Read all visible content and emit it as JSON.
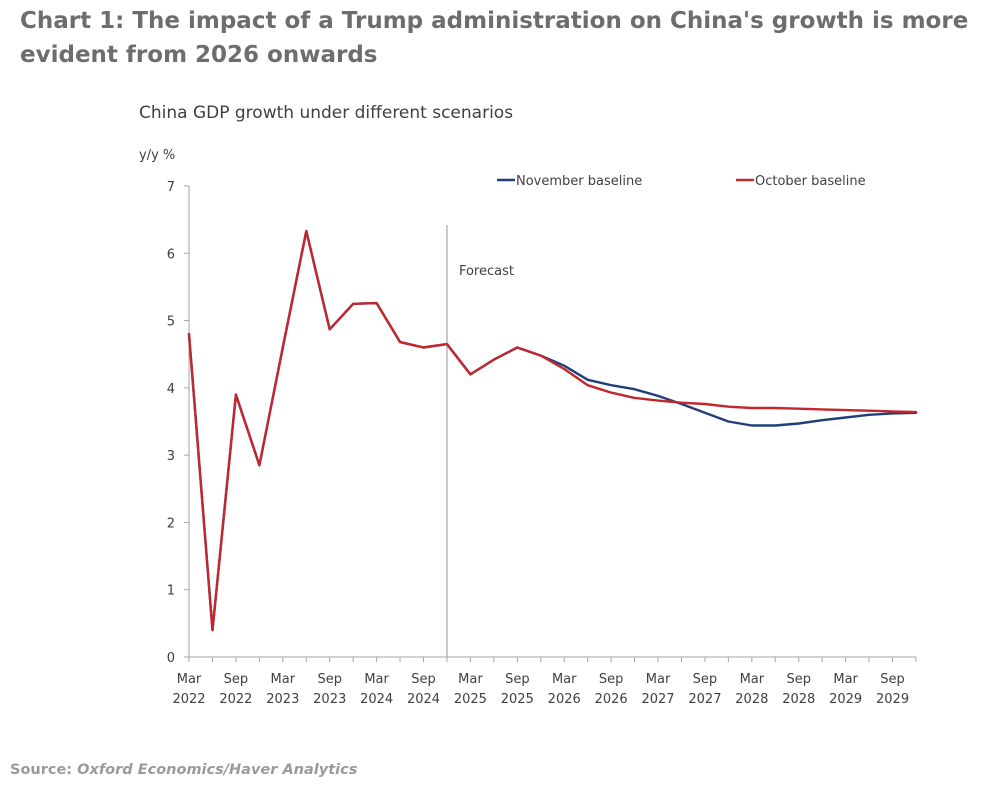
{
  "heading": "Chart 1: The impact of a Trump administration on China's growth is more evident from 2026 onwards",
  "source": {
    "label": "Source:",
    "text": "Oxford Economics/Haver Analytics"
  },
  "colors": {
    "november": "#1f3e7a",
    "october": "#c1272d",
    "axis": "#a6a6a6",
    "forecast_line": "#a6a6a6"
  },
  "chart_data": {
    "type": "line",
    "title": "China GDP growth under different scenarios",
    "ylabel": "y/y %",
    "ylim": [
      0,
      7
    ],
    "yticks": [
      "0",
      "1",
      "2",
      "3",
      "4",
      "5",
      "6",
      "7"
    ],
    "grid": false,
    "legend_position": "top",
    "x": [
      "Mar 2022",
      "Jun 2022",
      "Sep 2022",
      "Dec 2022",
      "Mar 2023",
      "Jun 2023",
      "Sep 2023",
      "Dec 2023",
      "Mar 2024",
      "Jun 2024",
      "Sep 2024",
      "Dec 2024",
      "Mar 2025",
      "Jun 2025",
      "Sep 2025",
      "Dec 2025",
      "Mar 2026",
      "Jun 2026",
      "Sep 2026",
      "Dec 2026",
      "Mar 2027",
      "Jun 2027",
      "Sep 2027",
      "Dec 2027",
      "Mar 2028",
      "Jun 2028",
      "Sep 2028",
      "Dec 2028",
      "Mar 2029",
      "Jun 2029",
      "Sep 2029",
      "Dec 2029"
    ],
    "tick_labels": [
      {
        "month": "Mar",
        "year": "2022"
      },
      {
        "month": "Sep",
        "year": "2022"
      },
      {
        "month": "Mar",
        "year": "2023"
      },
      {
        "month": "Sep",
        "year": "2023"
      },
      {
        "month": "Mar",
        "year": "2024"
      },
      {
        "month": "Sep",
        "year": "2024"
      },
      {
        "month": "Mar",
        "year": "2025"
      },
      {
        "month": "Sep",
        "year": "2025"
      },
      {
        "month": "Mar",
        "year": "2026"
      },
      {
        "month": "Sep",
        "year": "2026"
      },
      {
        "month": "Mar",
        "year": "2027"
      },
      {
        "month": "Sep",
        "year": "2027"
      },
      {
        "month": "Mar",
        "year": "2028"
      },
      {
        "month": "Sep",
        "year": "2028"
      },
      {
        "month": "Mar",
        "year": "2029"
      },
      {
        "month": "Sep",
        "year": "2029"
      }
    ],
    "forecast": {
      "label": "Forecast",
      "x": "Dec 2024"
    },
    "series": [
      {
        "name": "November baseline",
        "color": "#1f3e7a",
        "values": [
          4.8,
          0.4,
          3.9,
          2.85,
          4.6,
          6.33,
          4.87,
          5.25,
          5.26,
          4.68,
          4.6,
          4.65,
          4.2,
          4.42,
          4.6,
          4.48,
          4.33,
          4.12,
          4.04,
          3.98,
          3.88,
          3.76,
          3.63,
          3.5,
          3.44,
          3.44,
          3.47,
          3.52,
          3.56,
          3.6,
          3.62,
          3.63
        ]
      },
      {
        "name": "October baseline",
        "color": "#c1272d",
        "values": [
          4.8,
          0.4,
          3.9,
          2.85,
          4.6,
          6.33,
          4.87,
          5.25,
          5.26,
          4.68,
          4.6,
          4.65,
          4.2,
          4.42,
          4.6,
          4.48,
          4.28,
          4.04,
          3.93,
          3.85,
          3.81,
          3.78,
          3.76,
          3.72,
          3.7,
          3.7,
          3.69,
          3.68,
          3.67,
          3.66,
          3.65,
          3.64
        ]
      }
    ]
  }
}
